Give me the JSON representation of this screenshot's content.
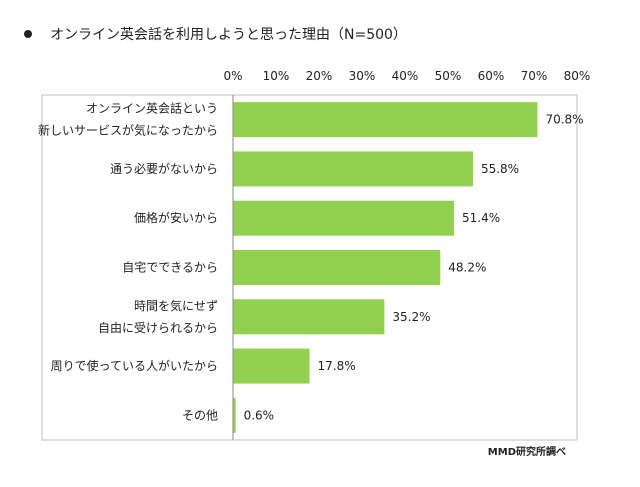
{
  "title": "オンライン英会話を利用しようと思った理由（N=500）",
  "source": "MMD研究所調べ",
  "colors": {
    "bar": "#92D050",
    "axis": "#888888",
    "frame": "#bfbfbf"
  },
  "chart_data": {
    "type": "bar",
    "orientation": "horizontal",
    "categories": [
      [
        "オンライン英会話という",
        "新しいサービスが気になったから"
      ],
      [
        "通う必要がないから"
      ],
      [
        "価格が安いから"
      ],
      [
        "自宅でできるから"
      ],
      [
        "時間を気にせず",
        "自由に受けられるから"
      ],
      [
        "周りで使っている人がいたから"
      ],
      [
        "その他"
      ]
    ],
    "values": [
      70.8,
      55.8,
      51.4,
      48.2,
      35.2,
      17.8,
      0.6
    ],
    "value_labels": [
      "70.8%",
      "55.8%",
      "51.4%",
      "48.2%",
      "35.2%",
      "17.8%",
      "0.6%"
    ],
    "xlim": [
      0,
      80
    ],
    "ticks": [
      "0%",
      "10%",
      "20%",
      "30%",
      "40%",
      "50%",
      "60%",
      "70%",
      "80%"
    ],
    "tick_values": [
      0,
      10,
      20,
      30,
      40,
      50,
      60,
      70,
      80
    ],
    "grid": false,
    "legend": "none"
  }
}
